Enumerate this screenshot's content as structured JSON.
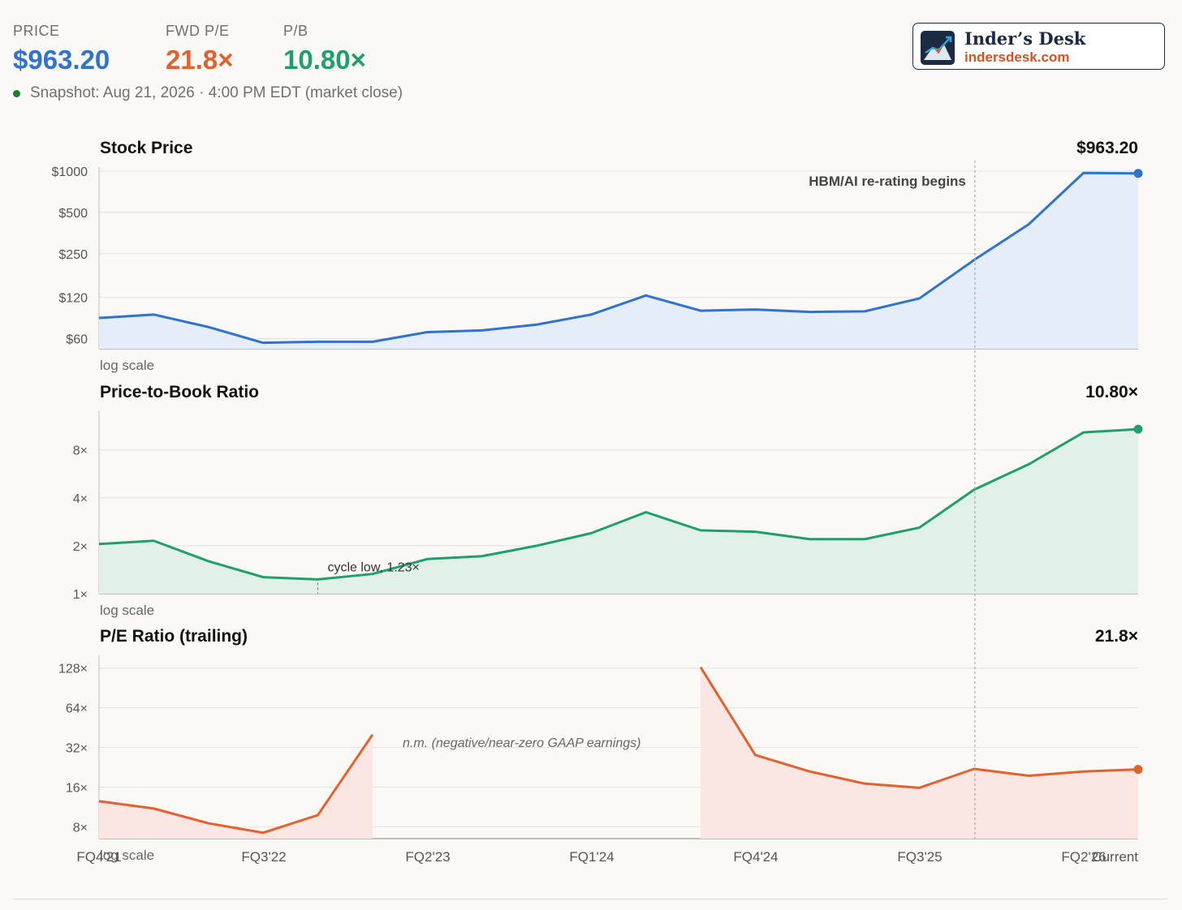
{
  "header": {
    "kpis": [
      {
        "label": "PRICE",
        "value": "$963.20",
        "color": "#2e73d0"
      },
      {
        "label": "FWD P/E",
        "value": "21.8×",
        "color": "#e2622e"
      },
      {
        "label": "P/B",
        "value": "10.80×",
        "color": "#1f9e6e"
      }
    ],
    "snapshot": "Snapshot: Aug 21, 2026 · 4:00 PM EDT (market close)"
  },
  "brand": {
    "name": "Inder’s Desk",
    "url": "indersdesk.com",
    "icon": "mountain-chart-logo-icon"
  },
  "chart_data": {
    "type": "line",
    "scale": "log",
    "x_ticks": [
      "FQ4'21",
      "FQ3'22",
      "FQ2'23",
      "FQ1'24",
      "FQ4'24",
      "FQ3'25",
      "FQ2'26",
      "Current"
    ],
    "annotation_vertical": {
      "label": "HBM/AI re-rating begins",
      "x_index": 16
    },
    "panels": [
      {
        "title": "Stock Price",
        "current_label": "$963.20",
        "scale_note": "log scale",
        "color": "#2e73d0",
        "fill": "#e4edf8",
        "y_ticks": [
          {
            "v": 1000,
            "label": "$1000"
          },
          {
            "v": 500,
            "label": "$500"
          },
          {
            "v": 250,
            "label": "$250"
          },
          {
            "v": 120,
            "label": "$120"
          },
          {
            "v": 60,
            "label": "$60"
          }
        ],
        "ylim": [
          50,
          1000
        ],
        "values": [
          85,
          90,
          73,
          56,
          57,
          57,
          67,
          69,
          76,
          90,
          124,
          96,
          98,
          94,
          95,
          118,
          225,
          410,
          970,
          963.2
        ],
        "note": null
      },
      {
        "title": "Price-to-Book Ratio",
        "current_label": "10.80×",
        "scale_note": "log scale",
        "color": "#1f9e6e",
        "fill": "#e1f1e8",
        "y_ticks": [
          {
            "v": 8,
            "label": "8×"
          },
          {
            "v": 4,
            "label": "4×"
          },
          {
            "v": 2,
            "label": "2×"
          },
          {
            "v": 1,
            "label": "1×"
          }
        ],
        "ylim": [
          1,
          14
        ],
        "values": [
          2.05,
          2.15,
          1.6,
          1.27,
          1.23,
          1.33,
          1.65,
          1.72,
          2.0,
          2.4,
          3.25,
          2.5,
          2.45,
          2.2,
          2.2,
          2.6,
          4.5,
          6.5,
          10.3,
          10.8
        ],
        "note": {
          "label": "cycle low, 1.23×",
          "x_index": 4
        }
      },
      {
        "title": "P/E Ratio (trailing)",
        "current_label": "21.8×",
        "scale_note": "log scale",
        "color": "#e2622e",
        "fill": "#fae6e2",
        "y_ticks": [
          {
            "v": 128,
            "label": "128×"
          },
          {
            "v": 64,
            "label": "64×"
          },
          {
            "v": 32,
            "label": "32×"
          },
          {
            "v": 16,
            "label": "16×"
          },
          {
            "v": 8,
            "label": "8×"
          }
        ],
        "ylim": [
          6.5,
          160
        ],
        "values": [
          12.5,
          11,
          8.5,
          7.2,
          9.8,
          40,
          null,
          null,
          null,
          null,
          null,
          130,
          28,
          21,
          17,
          15.8,
          22,
          19.5,
          21,
          21.8
        ],
        "note": {
          "label": "n.m. (negative/near-zero GAAP earnings)"
        }
      }
    ]
  }
}
